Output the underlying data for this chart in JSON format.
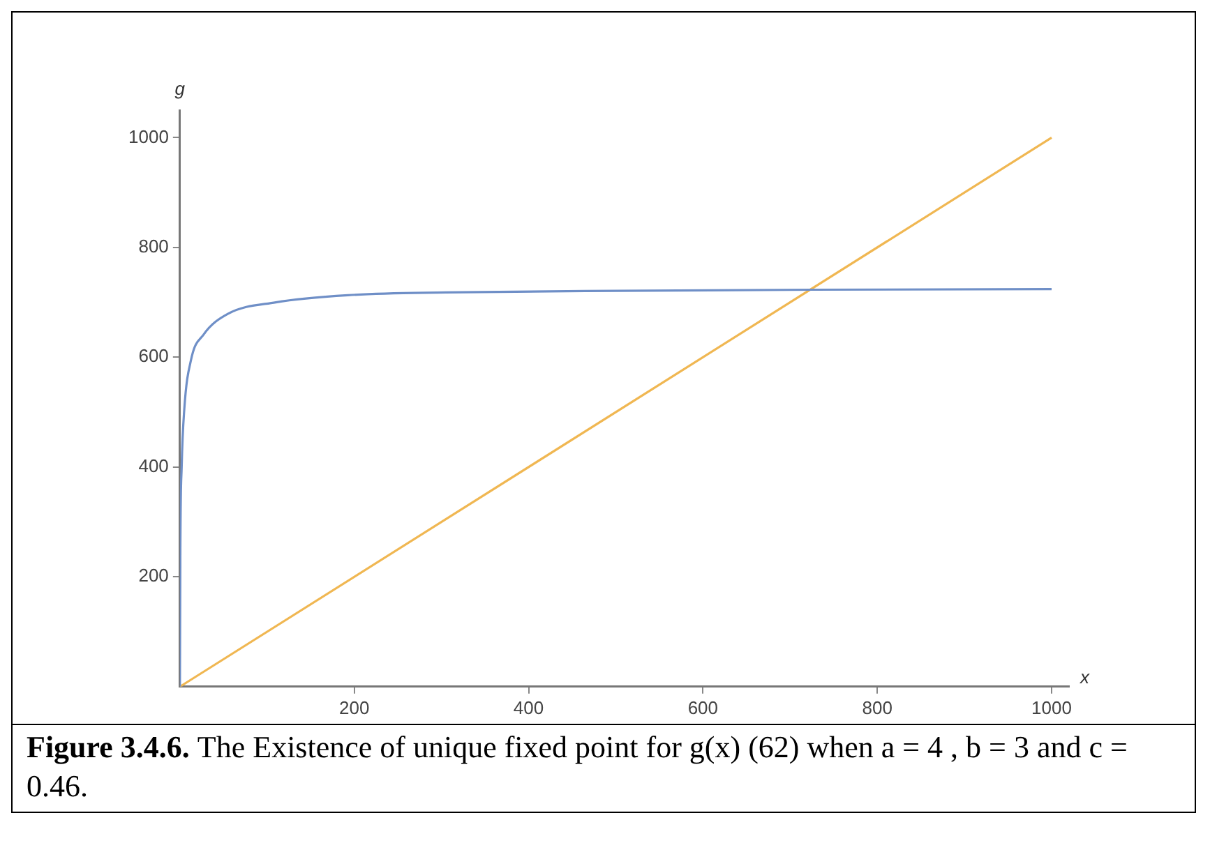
{
  "chart_data": {
    "type": "line",
    "xlabel": "x",
    "ylabel": "g",
    "annotations": [
      "Figure 3.4.6.",
      "The Existence  of unique fixed point for g(x) (62) when  a = 4 , b = 3 and c = 0.46."
    ],
    "xlim": [
      0,
      1020
    ],
    "ylim": [
      0,
      1050
    ],
    "xticks": [
      200,
      400,
      600,
      800,
      1000
    ],
    "yticks": [
      200,
      400,
      600,
      800,
      1000
    ],
    "grid": false,
    "legend": false,
    "marker": "none",
    "line_style": "solid",
    "series": [
      {
        "color": "#6f8fc7",
        "x": [
          0,
          0.5,
          2,
          5,
          13,
          27,
          55,
          110,
          193,
          305,
          500,
          725,
          1000
        ],
        "values": [
          0,
          250,
          400,
          505,
          597,
          641,
          679,
          700,
          713,
          718,
          721,
          723,
          724
        ]
      },
      {
        "color": "#f0b752",
        "x": [
          0,
          1000
        ],
        "values": [
          0,
          1000
        ]
      }
    ]
  }
}
